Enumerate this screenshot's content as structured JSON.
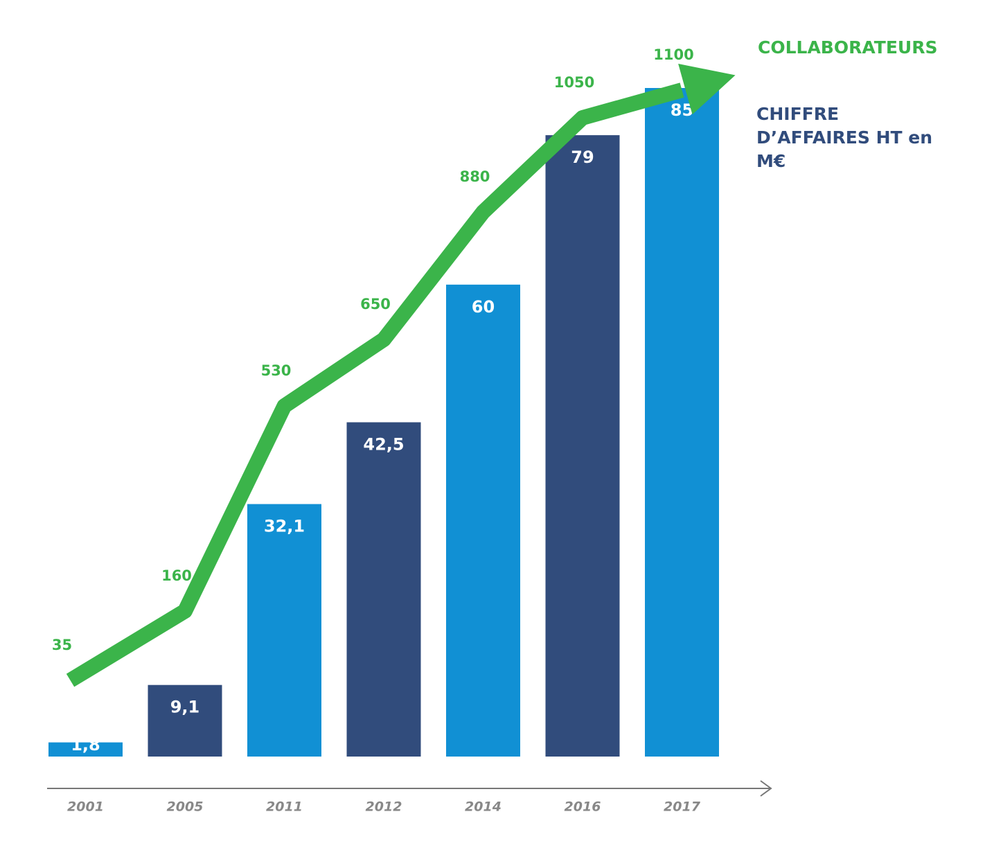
{
  "chart_data": {
    "type": "bar-line",
    "categories": [
      "2001",
      "2005",
      "2011",
      "2012",
      "2014",
      "2016",
      "2017"
    ],
    "series": [
      {
        "name": "CHIFFRE D’AFFAIRES HT en M€",
        "type": "bar",
        "colors": [
          "#1190d4",
          "#314c7c",
          "#1190d4",
          "#314c7c",
          "#1190d4",
          "#314c7c",
          "#1190d4"
        ],
        "color": "#314c7c",
        "values": [
          1.8,
          9.1,
          32.1,
          42.5,
          60,
          79,
          85
        ],
        "value_labels": [
          "1,8",
          "9,1",
          "32,1",
          "42,5",
          "60",
          "79",
          "85"
        ]
      },
      {
        "name": "COLLABORATEURS",
        "type": "line",
        "axis": "y2",
        "color": "#3bb44a",
        "values": [
          35,
          160,
          530,
          650,
          880,
          1050,
          1100
        ]
      }
    ]
  }
}
